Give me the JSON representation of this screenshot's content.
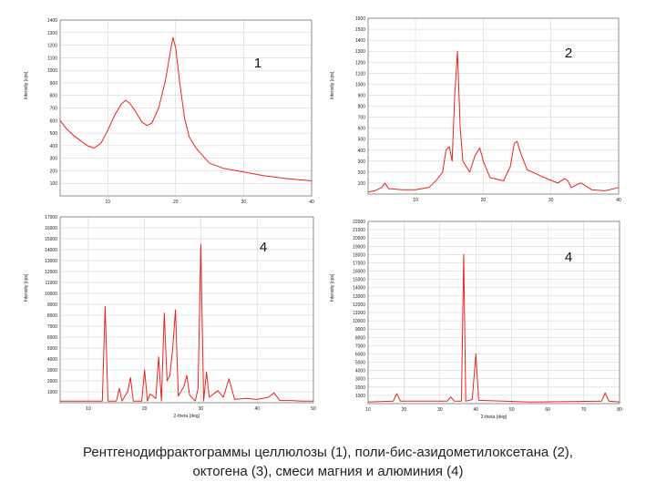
{
  "caption": {
    "line1": "Рентгенодифрактограммы целлюлозы (1), поли-бис-азидометилоксетана (2),",
    "line2": "октогена (3), смеси магния и алюминия (4)"
  },
  "colors": {
    "trace": "#e8241c",
    "frame": "#777777",
    "grid": "#cfcfcf",
    "text": "#222222"
  },
  "chart_data": [
    {
      "type": "line",
      "panel_label": "1",
      "ylabel": "Intensity [cps]",
      "xlabel": "",
      "xlim": [
        3,
        40
      ],
      "ylim": [
        0,
        1400
      ],
      "x_ticks": [
        10,
        20,
        30,
        40
      ],
      "y_ticks": [
        100,
        200,
        300,
        400,
        500,
        600,
        700,
        800,
        900,
        1000,
        1100,
        1200,
        1300,
        1400
      ],
      "grid": true,
      "series": [
        {
          "values": [
            [
              3,
              600
            ],
            [
              4,
              530
            ],
            [
              5,
              480
            ],
            [
              6,
              440
            ],
            [
              7,
              400
            ],
            [
              8,
              380
            ],
            [
              9,
              420
            ],
            [
              10,
              520
            ],
            [
              11,
              640
            ],
            [
              12,
              730
            ],
            [
              12.6,
              760
            ],
            [
              13.2,
              740
            ],
            [
              14,
              680
            ],
            [
              15,
              590
            ],
            [
              15.8,
              560
            ],
            [
              16.5,
              580
            ],
            [
              17.5,
              700
            ],
            [
              18.5,
              920
            ],
            [
              19.2,
              1140
            ],
            [
              19.6,
              1260
            ],
            [
              20,
              1180
            ],
            [
              20.6,
              900
            ],
            [
              21.3,
              620
            ],
            [
              22,
              470
            ],
            [
              23,
              380
            ],
            [
              24,
              320
            ],
            [
              25,
              260
            ],
            [
              27,
              220
            ],
            [
              30,
              190
            ],
            [
              33,
              160
            ],
            [
              36,
              140
            ],
            [
              40,
              120
            ]
          ]
        }
      ]
    },
    {
      "type": "line",
      "panel_label": "2",
      "ylabel": "Intensity [cps]",
      "xlabel": "",
      "xlim": [
        3,
        40
      ],
      "ylim": [
        0,
        1600
      ],
      "x_ticks": [
        10,
        20,
        30,
        40
      ],
      "y_ticks": [
        100,
        200,
        300,
        400,
        500,
        600,
        700,
        800,
        900,
        1000,
        1100,
        1200,
        1300,
        1400,
        1500,
        1600
      ],
      "grid": true,
      "series": [
        {
          "values": [
            [
              3,
              20
            ],
            [
              4,
              30
            ],
            [
              5,
              60
            ],
            [
              5.5,
              100
            ],
            [
              6,
              50
            ],
            [
              8,
              40
            ],
            [
              10,
              40
            ],
            [
              12,
              60
            ],
            [
              13,
              120
            ],
            [
              14,
              200
            ],
            [
              14.5,
              400
            ],
            [
              15,
              430
            ],
            [
              15.4,
              300
            ],
            [
              15.8,
              900
            ],
            [
              16.2,
              1300
            ],
            [
              16.6,
              600
            ],
            [
              17,
              300
            ],
            [
              18,
              200
            ],
            [
              18.8,
              350
            ],
            [
              19.5,
              420
            ],
            [
              20,
              300
            ],
            [
              21,
              150
            ],
            [
              23,
              120
            ],
            [
              24,
              250
            ],
            [
              24.6,
              460
            ],
            [
              25,
              480
            ],
            [
              25.5,
              380
            ],
            [
              26.5,
              220
            ],
            [
              28,
              180
            ],
            [
              29,
              150
            ],
            [
              31,
              100
            ],
            [
              32,
              140
            ],
            [
              32.5,
              120
            ],
            [
              33,
              60
            ],
            [
              34,
              90
            ],
            [
              34.5,
              100
            ],
            [
              36,
              40
            ],
            [
              38,
              30
            ],
            [
              40,
              60
            ]
          ]
        }
      ]
    },
    {
      "type": "line",
      "panel_label": "4",
      "ylabel": "Intensity [cps]",
      "xlabel": "2-theta (deg)",
      "xlim": [
        5,
        50
      ],
      "ylim": [
        0,
        17000
      ],
      "x_ticks": [
        10,
        20,
        30,
        40,
        50
      ],
      "y_ticks": [
        1000,
        2000,
        3000,
        4000,
        5000,
        6000,
        7000,
        8000,
        9000,
        10000,
        11000,
        12000,
        13000,
        14000,
        15000,
        16000,
        17000
      ],
      "grid": true,
      "series": [
        {
          "values": [
            [
              5,
              150
            ],
            [
              12.5,
              150
            ],
            [
              13,
              8800
            ],
            [
              13.5,
              150
            ],
            [
              15,
              150
            ],
            [
              15.5,
              1300
            ],
            [
              16,
              150
            ],
            [
              16.5,
              600
            ],
            [
              17,
              1000
            ],
            [
              17.5,
              2300
            ],
            [
              18,
              150
            ],
            [
              19.5,
              150
            ],
            [
              20,
              3000
            ],
            [
              20.5,
              150
            ],
            [
              21,
              800
            ],
            [
              22,
              400
            ],
            [
              22.5,
              4200
            ],
            [
              23,
              150
            ],
            [
              23.5,
              8200
            ],
            [
              24,
              2000
            ],
            [
              24.5,
              2500
            ],
            [
              25,
              5000
            ],
            [
              25.5,
              8500
            ],
            [
              26,
              600
            ],
            [
              27,
              1500
            ],
            [
              27.5,
              2500
            ],
            [
              28,
              700
            ],
            [
              29,
              150
            ],
            [
              29.5,
              1300
            ],
            [
              30,
              14500
            ],
            [
              30.5,
              150
            ],
            [
              31,
              2800
            ],
            [
              31.5,
              500
            ],
            [
              33,
              1100
            ],
            [
              34,
              500
            ],
            [
              35,
              2200
            ],
            [
              36,
              300
            ],
            [
              38,
              400
            ],
            [
              40,
              300
            ],
            [
              42,
              500
            ],
            [
              43,
              900
            ],
            [
              44,
              200
            ],
            [
              46,
              200
            ],
            [
              48,
              150
            ],
            [
              50,
              150
            ]
          ]
        }
      ]
    },
    {
      "type": "line",
      "panel_label": "4",
      "ylabel": "Intensity [cps]",
      "xlabel": "2-theta (deg)",
      "xlim": [
        10,
        80
      ],
      "ylim": [
        0,
        22000
      ],
      "x_ticks": [
        10,
        20,
        30,
        40,
        50,
        60,
        70,
        80
      ],
      "y_ticks": [
        1000,
        2000,
        3000,
        4000,
        5000,
        6000,
        7000,
        8000,
        9000,
        10000,
        11000,
        12000,
        13000,
        14000,
        15000,
        16000,
        17000,
        18000,
        19000,
        20000,
        21000,
        22000
      ],
      "grid": true,
      "series": [
        {
          "values": [
            [
              10,
              200
            ],
            [
              17,
              300
            ],
            [
              18,
              1200
            ],
            [
              19,
              300
            ],
            [
              32,
              300
            ],
            [
              33,
              800
            ],
            [
              34,
              300
            ],
            [
              36,
              300
            ],
            [
              36.6,
              18000
            ],
            [
              37.2,
              300
            ],
            [
              39,
              500
            ],
            [
              40,
              6000
            ],
            [
              40.8,
              400
            ],
            [
              55,
              200
            ],
            [
              75,
              300
            ],
            [
              76,
              1300
            ],
            [
              77,
              300
            ],
            [
              80,
              200
            ]
          ]
        }
      ]
    }
  ]
}
